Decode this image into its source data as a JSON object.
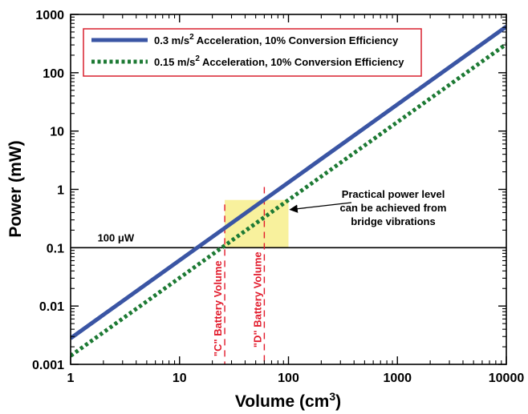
{
  "chart_data": {
    "type": "line",
    "x_scale": "log",
    "y_scale": "log",
    "xlim": [
      1,
      10000
    ],
    "ylim": [
      0.001,
      1000
    ],
    "xlabel": "Volume (cm",
    "xlabel_sup": "3",
    "xlabel_suffix": ")",
    "ylabel": "Power (mW)",
    "x_ticks": [
      {
        "value": 1,
        "label": "1"
      },
      {
        "value": 10,
        "label": "10"
      },
      {
        "value": 100,
        "label": "100"
      },
      {
        "value": 1000,
        "label": "1000"
      },
      {
        "value": 10000,
        "label": "10000"
      }
    ],
    "y_ticks": [
      {
        "value": 0.001,
        "label": "0.001"
      },
      {
        "value": 0.01,
        "label": "0.01"
      },
      {
        "value": 0.1,
        "label": "0.1"
      },
      {
        "value": 1,
        "label": "1"
      },
      {
        "value": 10,
        "label": "10"
      },
      {
        "value": 100,
        "label": "100"
      },
      {
        "value": 1000,
        "label": "1000"
      }
    ],
    "grid": false,
    "legend_position": "top-left",
    "series": [
      {
        "name_prefix": "0.3 m/s",
        "name_sup": "2",
        "name_suffix": " Acceleration, 10% Conversion Efficiency",
        "style": "solid",
        "color": "#3a55a4",
        "x": [
          1,
          10000
        ],
        "y": [
          0.0028,
          620
        ]
      },
      {
        "name_prefix": "0.15 m/s",
        "name_sup": "2",
        "name_suffix": " Acceleration, 10% Conversion Efficiency",
        "style": "dotted",
        "color": "#1d7a34",
        "x": [
          1,
          10000
        ],
        "y": [
          0.0014,
          310
        ]
      }
    ],
    "reference_line": {
      "y": 0.1,
      "label": "100 μW",
      "color": "#000000"
    },
    "vertical_markers": [
      {
        "x": 26,
        "label": "\"C\" Battery Volume",
        "color": "#e21b2c",
        "y_top": 0.55
      },
      {
        "x": 60,
        "label": "\"D\" Battery Volume",
        "color": "#e21b2c",
        "y_top": 1.1
      }
    ],
    "highlight_region": {
      "x_min": 26,
      "x_max": 100,
      "y_min": 0.1,
      "color": "#f8f19d"
    },
    "annotation": {
      "lines": [
        "Practical power level",
        "can be achieved from",
        "bridge vibrations"
      ],
      "arrow_to": {
        "x": 100,
        "y": 0.45
      }
    },
    "colors": {
      "legend_border": "#d9202f",
      "frame": "#000000"
    }
  }
}
